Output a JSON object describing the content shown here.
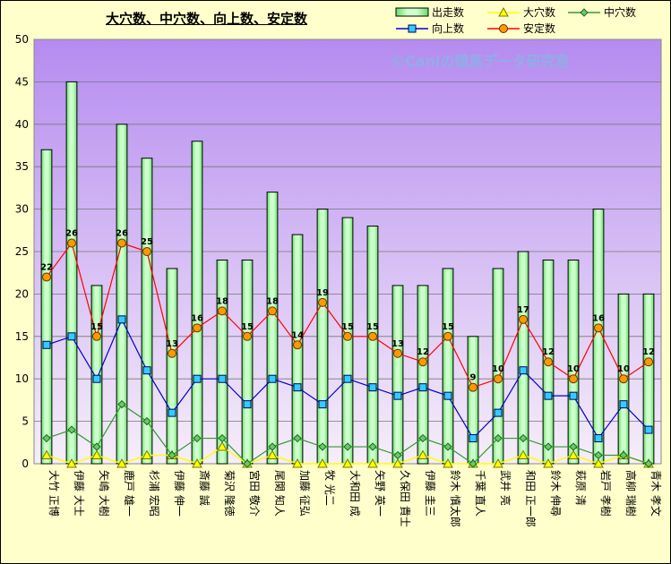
{
  "chart_data": {
    "type": "bar",
    "title": "大穴数、中穴数、向上数、安定数",
    "watermark": "©Caniの競馬データ研究室",
    "ylim": [
      0,
      50
    ],
    "yticks": [
      0,
      5,
      10,
      15,
      20,
      25,
      30,
      35,
      40,
      45,
      50
    ],
    "categories": [
      "大竹 正博",
      "伊藤 大士",
      "矢嶋 大樹",
      "鹿戸 雄一",
      "杉浦 宏昭",
      "伊藤 伸一",
      "斎藤 誠",
      "菊沢 隆徳",
      "宮田 敬介",
      "尾関 知人",
      "加藤 征弘",
      "牧 光二",
      "大和田 成",
      "矢野 英一",
      "久保田 貴士",
      "伊藤 圭三",
      "鈴木 慎太郎",
      "千葉 直人",
      "武井 亮",
      "和田 正一郎",
      "鈴木 伸尋",
      "萩原 清",
      "岩戸 孝樹",
      "高柳 瑞樹",
      "青木 孝文"
    ],
    "series": [
      {
        "name": "出走数",
        "kind": "bar",
        "color": "#99ff99",
        "values": [
          37,
          45,
          21,
          40,
          36,
          23,
          38,
          24,
          24,
          32,
          27,
          30,
          29,
          28,
          21,
          21,
          23,
          15,
          23,
          25,
          24,
          24,
          30,
          20,
          20
        ]
      },
      {
        "name": "大穴数",
        "kind": "line",
        "color": "#ffff00",
        "values": [
          1,
          0,
          1,
          0,
          1,
          1,
          0,
          2,
          0,
          1,
          0,
          0,
          0,
          0,
          0,
          1,
          0,
          0,
          0,
          1,
          0,
          1,
          0,
          1,
          0
        ]
      },
      {
        "name": "中穴数",
        "kind": "line",
        "color": "#339933",
        "values": [
          3,
          4,
          2,
          7,
          5,
          1,
          3,
          3,
          0,
          2,
          3,
          2,
          2,
          2,
          1,
          3,
          2,
          0,
          3,
          3,
          2,
          2,
          1,
          1,
          0
        ]
      },
      {
        "name": "向上数",
        "kind": "line",
        "color": "#0000cc",
        "values": [
          14,
          15,
          10,
          17,
          11,
          6,
          10,
          10,
          7,
          10,
          9,
          7,
          10,
          9,
          8,
          9,
          8,
          3,
          6,
          11,
          8,
          8,
          3,
          7,
          4
        ]
      },
      {
        "name": "安定数",
        "kind": "line",
        "color": "#ff0000",
        "values": [
          22,
          26,
          15,
          26,
          25,
          13,
          16,
          18,
          15,
          18,
          14,
          19,
          15,
          15,
          13,
          12,
          15,
          9,
          10,
          17,
          12,
          10,
          16,
          10,
          12
        ]
      }
    ],
    "data_labels_series": "安定数",
    "grid": true,
    "legend_position": "top-right"
  }
}
